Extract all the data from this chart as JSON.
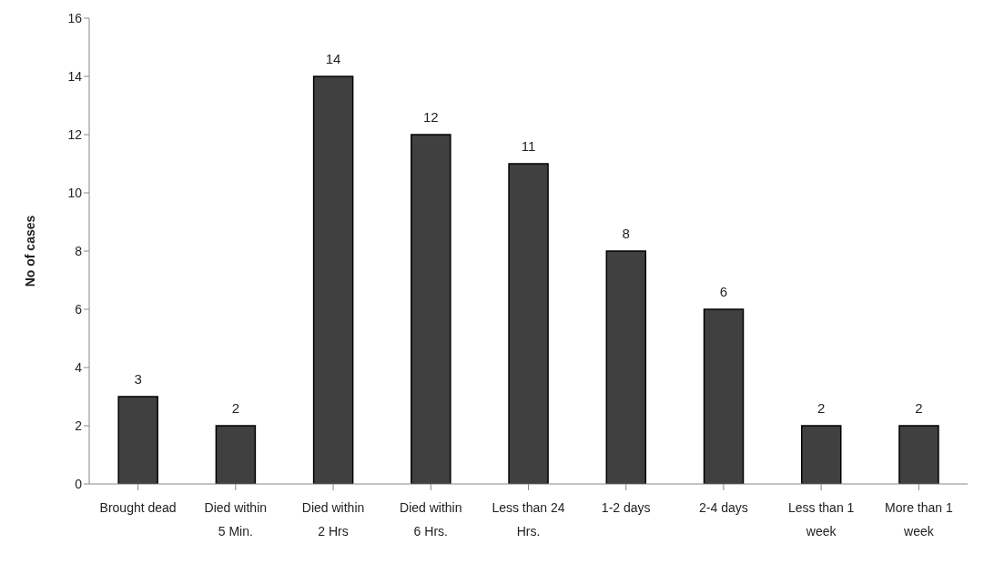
{
  "chart_data": {
    "type": "bar",
    "ylabel": "No of cases",
    "categories": [
      "Brought dead",
      "Died within 5 Min.",
      "Died within 2 Hrs",
      "Died within 6 Hrs.",
      "Less than 24 Hrs.",
      "1-2 days",
      "2-4 days",
      "Less than 1 week",
      "More than 1 week"
    ],
    "values": [
      3,
      2,
      14,
      12,
      11,
      8,
      6,
      2,
      2
    ],
    "color": "#404040",
    "ylim": [
      0,
      16
    ],
    "yticks": [
      0,
      2,
      4,
      6,
      8,
      10,
      12,
      14,
      16
    ],
    "grid": false,
    "data_labels": true
  }
}
